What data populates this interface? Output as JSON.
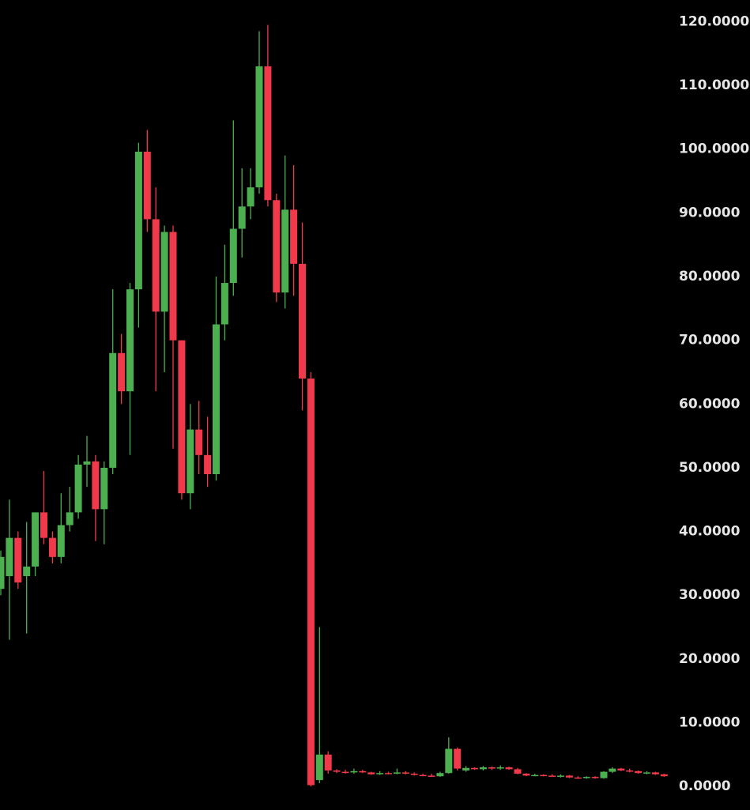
{
  "chart_data": {
    "type": "candlestick",
    "up_color": "#4caf50",
    "down_color": "#f0394a",
    "ylim": [
      -3.7,
      123.4
    ],
    "yticks": [
      {
        "value": 0,
        "label": "0.0000"
      },
      {
        "value": 10,
        "label": "10.0000"
      },
      {
        "value": 20,
        "label": "20.0000"
      },
      {
        "value": 30,
        "label": "30.0000"
      },
      {
        "value": 40,
        "label": "40.0000"
      },
      {
        "value": 50,
        "label": "50.0000"
      },
      {
        "value": 60,
        "label": "60.0000"
      },
      {
        "value": 70,
        "label": "70.0000"
      },
      {
        "value": 80,
        "label": "80.0000"
      },
      {
        "value": 90,
        "label": "90.0000"
      },
      {
        "value": 100,
        "label": "100.0000"
      },
      {
        "value": 110,
        "label": "110.0000"
      },
      {
        "value": 120,
        "label": "120.0000"
      }
    ],
    "open": [
      31,
      33,
      39,
      33,
      34.5,
      43,
      39,
      36,
      41,
      43,
      50.5,
      51,
      43.5,
      50,
      68,
      62,
      78,
      99.6,
      89,
      74.5,
      87,
      70,
      46,
      56,
      52,
      49,
      72.5,
      79,
      87.5,
      91,
      94,
      113,
      92,
      77.5,
      90.5,
      82,
      64,
      1,
      5,
      2.5,
      2.3,
      2.2,
      2.4,
      2.2,
      1.9,
      2.1,
      2.0,
      2.2,
      2.0,
      1.8,
      1.7,
      1.6,
      2.1,
      5.9,
      2.5,
      2.9,
      2.7,
      3.0,
      2.8,
      3.0,
      2.7,
      2.0,
      1.7,
      1.8,
      1.7,
      1.6,
      1.7,
      1.4,
      1.3,
      1.5,
      1.3,
      2.3,
      2.8,
      2.5,
      2.4,
      2.1,
      2.2,
      1.9
    ],
    "high": [
      37,
      45,
      40,
      41.5,
      43,
      49.5,
      40,
      46,
      47,
      52,
      55,
      52,
      51,
      78,
      71,
      79,
      101,
      103,
      94,
      88,
      88,
      70,
      60,
      60.5,
      58,
      80,
      85,
      104.5,
      97,
      97,
      118.5,
      119.5,
      93,
      99,
      97.5,
      88.5,
      65,
      25,
      5.5,
      2.7,
      2.6,
      2.8,
      2.6,
      2.3,
      2.4,
      2.3,
      2.8,
      2.4,
      2.2,
      2.0,
      2.0,
      2.3,
      7.7,
      6.1,
      3.2,
      3.0,
      3.2,
      3.1,
      3.3,
      3.1,
      2.9,
      2.1,
      2.0,
      1.9,
      1.9,
      1.9,
      1.8,
      1.6,
      1.6,
      1.6,
      2.4,
      3.0,
      2.9,
      2.8,
      2.5,
      2.4,
      2.3,
      2.0
    ],
    "low": [
      30,
      23,
      31,
      24,
      33,
      38,
      35,
      35,
      40,
      42,
      47,
      38.5,
      38,
      49,
      60,
      52,
      72,
      87,
      62,
      65,
      53,
      45,
      43.5,
      49,
      47,
      48,
      70,
      77,
      83,
      89,
      93,
      91,
      76,
      75,
      77,
      59,
      0,
      0.5,
      2,
      2.1,
      2.0,
      2.0,
      2.1,
      1.8,
      1.8,
      1.9,
      1.9,
      1.9,
      1.7,
      1.6,
      1.5,
      1.5,
      2.0,
      2.5,
      2.3,
      2.6,
      2.5,
      2.6,
      2.6,
      2.6,
      1.9,
      1.6,
      1.6,
      1.6,
      1.5,
      1.4,
      1.3,
      1.2,
      1.2,
      1.2,
      1.2,
      2.1,
      2.4,
      2.2,
      2.0,
      1.9,
      1.8,
      1.5
    ],
    "close": [
      36,
      39,
      32,
      34.5,
      43,
      39,
      36,
      41,
      43,
      50.5,
      51,
      43.5,
      50,
      68,
      62,
      78,
      99.6,
      89,
      74.5,
      87,
      70,
      46,
      56,
      52,
      49,
      72.5,
      79,
      87.5,
      91,
      94,
      113,
      92,
      77.5,
      90.5,
      82,
      64,
      0.2,
      5,
      2.5,
      2.3,
      2.2,
      2.4,
      2.2,
      1.9,
      2.1,
      2.0,
      2.2,
      2.0,
      1.8,
      1.7,
      1.6,
      2.1,
      5.9,
      2.8,
      2.9,
      2.7,
      3.0,
      2.8,
      3.0,
      2.7,
      2.0,
      1.7,
      1.8,
      1.7,
      1.6,
      1.7,
      1.4,
      1.3,
      1.5,
      1.3,
      2.3,
      2.8,
      2.5,
      2.4,
      2.1,
      2.2,
      1.9,
      1.6
    ]
  }
}
